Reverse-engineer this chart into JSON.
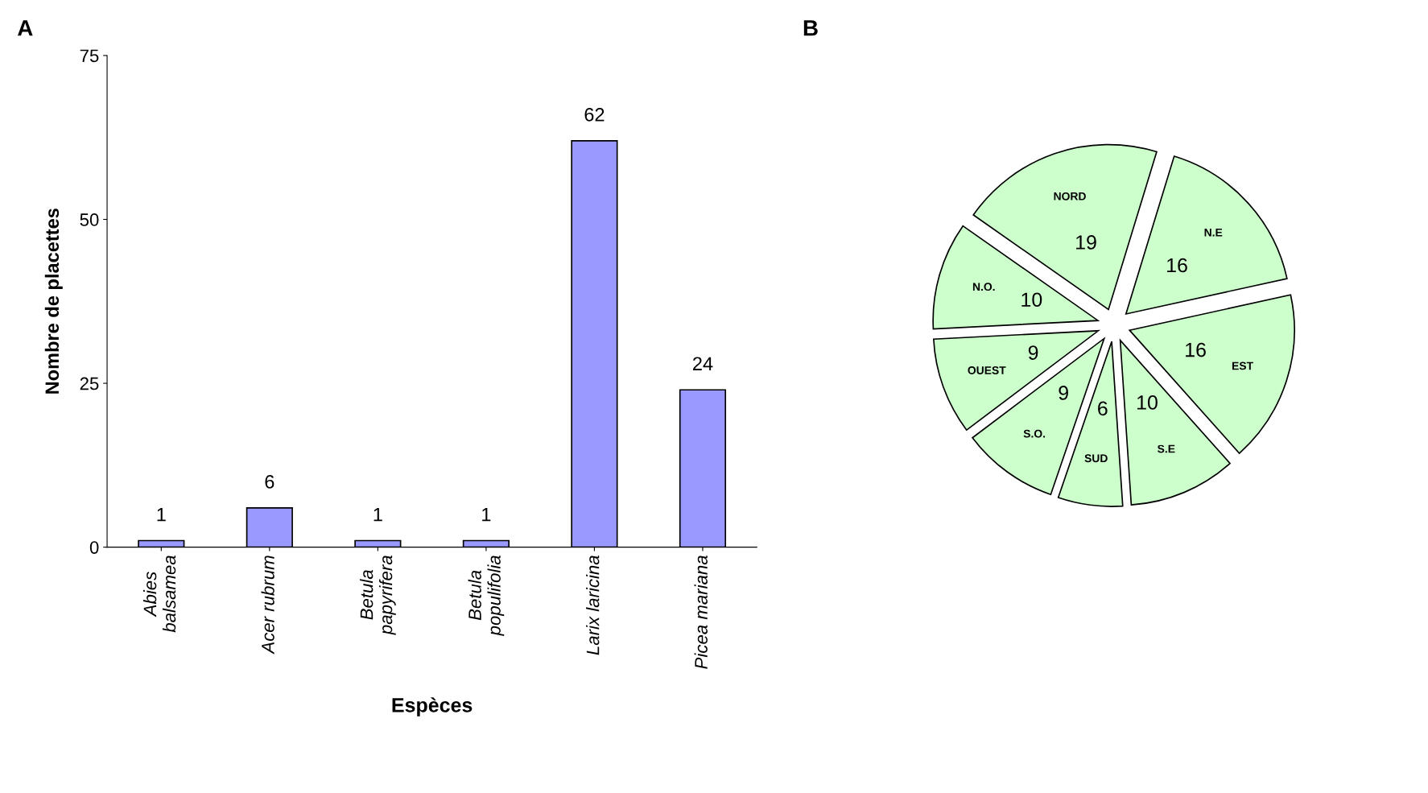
{
  "chart_data": [
    {
      "type": "bar",
      "title": "A",
      "xlabel": "Espèces",
      "ylabel": "Nombre de placettes",
      "categories": [
        "Abies\nbalsamea",
        "Acer rubrum",
        "Betula\npapyrifera",
        "Betula\npopulifolia",
        "Larix laricina",
        "Picea mariana"
      ],
      "values": [
        1,
        6,
        1,
        1,
        62,
        24
      ],
      "color": "#9999ff",
      "ylim": [
        0,
        75
      ],
      "yticks": [
        0,
        25,
        50,
        75
      ],
      "data_labels": true,
      "grid": false
    },
    {
      "type": "pie",
      "title": "B",
      "categories": [
        "NORD",
        "N.E",
        "EST",
        "S.E",
        "SUD",
        "S.O.",
        "OUEST",
        "N.O."
      ],
      "values": [
        19,
        16,
        16,
        10,
        6,
        9,
        9,
        10
      ],
      "colors": [
        "#ccffcc",
        "#ccffcc",
        "#ccffcc",
        "#ccffcc",
        "#ccffcc",
        "#ccffcc",
        "#ccffcc",
        "#ccffcc"
      ],
      "data_labels": true
    }
  ]
}
